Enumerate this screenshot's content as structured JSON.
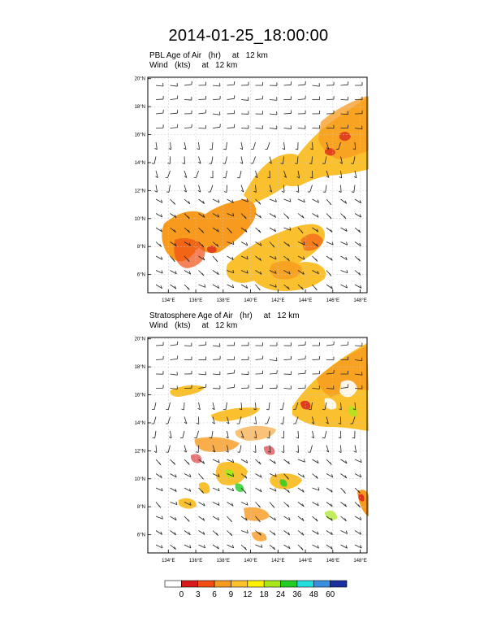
{
  "title": "2014-01-25_18:00:00",
  "top_panel": {
    "label_line1": "PBL Age of Air   (hr)     at   12 km",
    "label_line2": "Wind   (kts)     at   12 km"
  },
  "bottom_panel": {
    "label_line1": "Stratosphere Age of Air   (hr)     at   12 km",
    "label_line2": "Wind   (kts)     at   12 km"
  },
  "axes": {
    "lat_labels": [
      "6°N",
      "8°N",
      "10°N",
      "12°N",
      "14°N",
      "16°N",
      "18°N",
      "20°N"
    ],
    "lon_labels": [
      "134°E",
      "136°E",
      "138°E",
      "140°E",
      "142°E",
      "144°E",
      "146°E",
      "148°E"
    ],
    "lat_values": [
      6,
      8,
      10,
      12,
      14,
      16,
      18,
      20
    ],
    "lon_values": [
      134,
      136,
      138,
      140,
      142,
      144,
      146,
      148
    ],
    "lon_range": [
      132.5,
      148.5
    ],
    "lat_range": [
      4.7,
      20.1
    ]
  },
  "colorbar": {
    "labels": [
      "0",
      "3",
      "6",
      "9",
      "12",
      "18",
      "24",
      "36",
      "48",
      "60"
    ],
    "colors": [
      "#ffffff",
      "#d7191c",
      "#f04e12",
      "#f79a1e",
      "#fbc02d",
      "#fff200",
      "#a8e61d",
      "#22cc22",
      "#22dddd",
      "#3a8ee0",
      "#1c2fa0"
    ]
  }
}
